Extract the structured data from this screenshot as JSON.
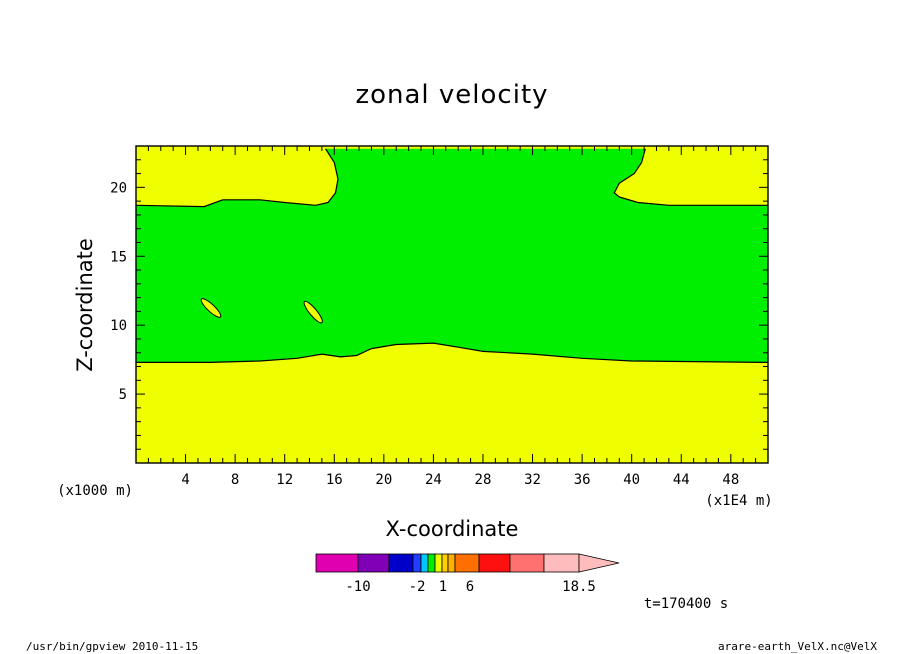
{
  "chart_data": {
    "type": "contour",
    "title": "zonal velocity",
    "xlabel": "X-coordinate",
    "ylabel": "Z-coordinate",
    "x_unit_label": "(x1E4 m)",
    "y_unit_label": "(x1000 m)",
    "xlim": [
      0,
      51
    ],
    "ylim": [
      0,
      23
    ],
    "x_ticks": [
      "4",
      "8",
      "12",
      "16",
      "20",
      "24",
      "28",
      "32",
      "36",
      "40",
      "44",
      "48"
    ],
    "y_ticks": [
      "5",
      "10",
      "15",
      "20"
    ],
    "fill_colors": {
      "low_band": "#f0ff00",
      "mid_band": "#00ee00"
    },
    "lower_contour": [
      [
        0,
        7.3
      ],
      [
        6,
        7.3
      ],
      [
        10,
        7.4
      ],
      [
        13,
        7.6
      ],
      [
        15,
        7.9
      ],
      [
        16.5,
        7.7
      ],
      [
        17.8,
        7.8
      ],
      [
        19,
        8.3
      ],
      [
        21,
        8.6
      ],
      [
        24,
        8.7
      ],
      [
        26,
        8.4
      ],
      [
        28,
        8.1
      ],
      [
        32,
        7.9
      ],
      [
        36,
        7.6
      ],
      [
        40,
        7.4
      ],
      [
        51,
        7.3
      ]
    ],
    "upper_contour": [
      [
        0,
        18.7
      ],
      [
        5.5,
        18.6
      ],
      [
        7,
        19.1
      ],
      [
        10,
        19.1
      ],
      [
        12,
        18.9
      ],
      [
        14.5,
        18.7
      ],
      [
        15.5,
        18.9
      ],
      [
        16.1,
        19.6
      ],
      [
        16.3,
        20.6
      ],
      [
        16,
        21.8
      ],
      [
        15.3,
        22.8
      ]
    ],
    "upper_contour_right": [
      [
        41.1,
        22.8
      ],
      [
        40.8,
        21.8
      ],
      [
        40.2,
        21
      ],
      [
        39,
        20.3
      ],
      [
        38.6,
        19.6
      ],
      [
        39,
        19.3
      ],
      [
        40.5,
        18.9
      ],
      [
        43,
        18.7
      ],
      [
        51,
        18.7
      ]
    ],
    "small_cells": [
      {
        "x": [
          5.4,
          6.7
        ],
        "z": [
          11.8,
          10.7
        ]
      },
      {
        "x": [
          13.7,
          14.9
        ],
        "z": [
          11.6,
          10.3
        ]
      }
    ],
    "colorbar": {
      "colors": [
        "#e000b0",
        "#8000b8",
        "#0000c8",
        "#2040ff",
        "#00c8ff",
        "#00ee00",
        "#f0ff00",
        "#ffd000",
        "#ffb000",
        "#ff7000",
        "#ff1010",
        "#ff7070",
        "#ffbcbc"
      ],
      "labels": [
        "-10",
        "-2",
        "1",
        "6",
        "18.5"
      ]
    },
    "time_label": "t=170400 s"
  },
  "footer": {
    "left": "/usr/bin/gpview  2010-11-15",
    "right": "arare-earth_VelX.nc@VelX"
  }
}
